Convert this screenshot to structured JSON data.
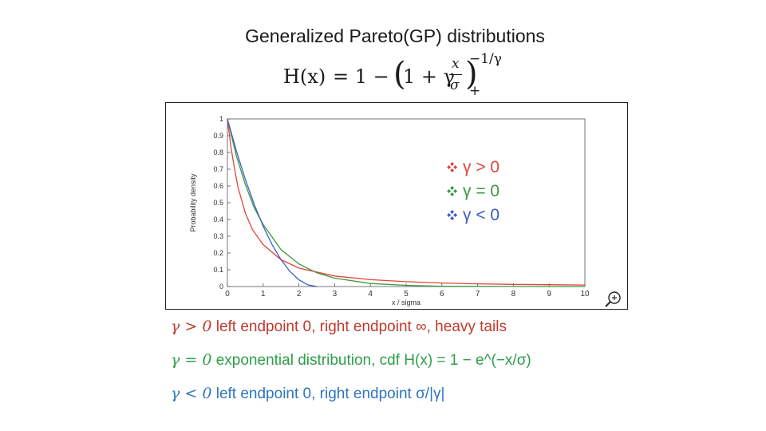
{
  "slide": {
    "title": "Generalized Pareto(GP) distributions",
    "formula": {
      "lhs": "H(x)",
      "eq": "= 1 −",
      "paren_open": "(",
      "one_plus_gamma": "1 + γ",
      "frac_num": "x",
      "frac_den": "σ",
      "paren_close": ")",
      "exponent": "−1/γ",
      "subscript": "+"
    },
    "notes": [
      {
        "symbol": "γ  > 0",
        "text": "left endpoint 0, right endpoint ∞, heavy tails",
        "color": "#c0392b"
      },
      {
        "symbol": "γ = 0",
        "text": "exponential distribution, cdf H(x) = 1 − e^(−x/σ)",
        "color": "#2e9e4a"
      },
      {
        "symbol": "γ < 0",
        "text": "left endpoint 0, right endpoint σ/|γ|",
        "color": "#2f74c0"
      }
    ]
  },
  "chart_data": {
    "type": "line",
    "xlabel": "x / sigma",
    "ylabel": "Probability density",
    "xlim": [
      0,
      10
    ],
    "ylim": [
      0,
      1
    ],
    "xticks": [
      0,
      1,
      2,
      3,
      4,
      5,
      6,
      7,
      8,
      9,
      10
    ],
    "yticks": [
      0,
      0.1,
      0.2,
      0.3,
      0.4,
      0.5,
      0.6,
      0.7,
      0.8,
      0.9,
      1
    ],
    "grid": false,
    "legend_position": "top-right",
    "series": [
      {
        "name": "γ > 0",
        "color": "#e0453a",
        "x": [
          0,
          0.1,
          0.2,
          0.3,
          0.5,
          0.7,
          1,
          1.5,
          2,
          3,
          4,
          5,
          6,
          7,
          8,
          9,
          10
        ],
        "y": [
          1,
          0.83,
          0.7,
          0.59,
          0.44,
          0.34,
          0.25,
          0.16,
          0.11,
          0.063,
          0.041,
          0.029,
          0.021,
          0.016,
          0.013,
          0.011,
          0.009
        ]
      },
      {
        "name": "γ = 0",
        "color": "#3a9a3f",
        "x": [
          0,
          0.25,
          0.5,
          0.75,
          1,
          1.5,
          2,
          2.5,
          3,
          4,
          5,
          6,
          7,
          8,
          9,
          10
        ],
        "y": [
          1,
          0.78,
          0.61,
          0.47,
          0.37,
          0.22,
          0.135,
          0.082,
          0.05,
          0.018,
          0.007,
          0.002,
          0.001,
          0.0003,
          0.0001,
          0
        ]
      },
      {
        "name": "γ < 0",
        "color": "#3c5cc8",
        "x": [
          0,
          0.25,
          0.5,
          0.75,
          1,
          1.25,
          1.5,
          1.75,
          2,
          2.25,
          2.5
        ],
        "y": [
          1,
          0.81,
          0.64,
          0.49,
          0.36,
          0.25,
          0.16,
          0.09,
          0.04,
          0.01,
          0
        ]
      }
    ]
  }
}
